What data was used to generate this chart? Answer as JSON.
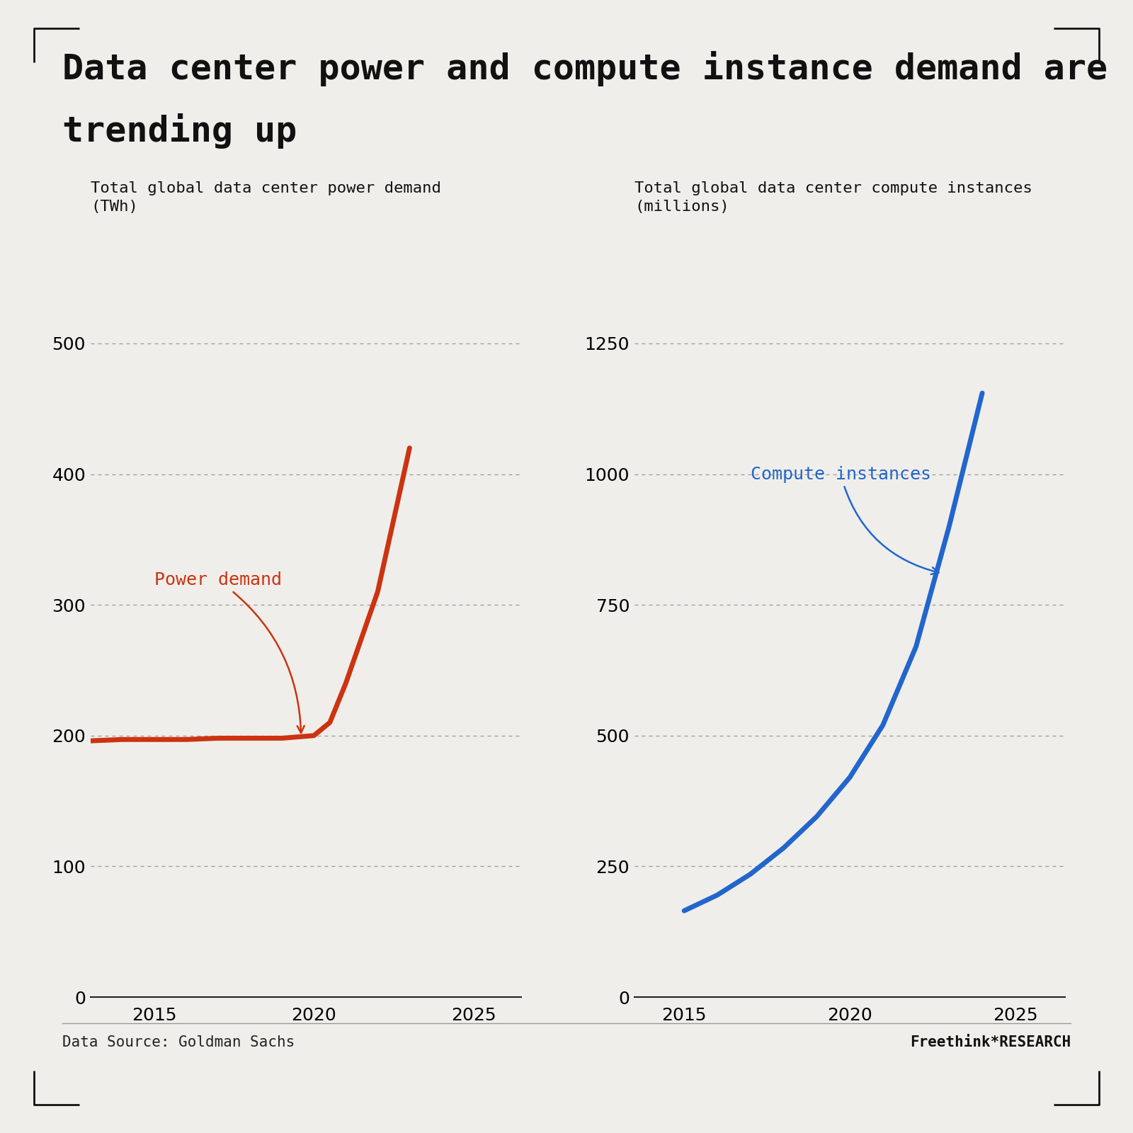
{
  "title_line1": "Data center power and compute instance demand are",
  "title_line2": "trending up",
  "left_subtitle": "Total global data center power demand\n(TWh)",
  "right_subtitle": "Total global data center compute instances\n(millions)",
  "source": "Data Source: Goldman Sachs",
  "branding_regular": "Freethink",
  "branding_star": "*",
  "branding_bold": "RESEARCH",
  "bg_color": "#f0eeeb",
  "left_line_color": "#cc3311",
  "right_line_color": "#2266cc",
  "power_years": [
    2013,
    2014,
    2015,
    2016,
    2017,
    2018,
    2019,
    2019.5,
    2020,
    2020.5,
    2021,
    2022,
    2023
  ],
  "power_values": [
    196,
    197,
    197,
    197,
    198,
    198,
    198,
    199,
    200,
    210,
    240,
    310,
    420
  ],
  "compute_years": [
    2015,
    2016,
    2017,
    2018,
    2019,
    2020,
    2021,
    2022,
    2023,
    2024
  ],
  "compute_values": [
    165,
    195,
    235,
    285,
    345,
    420,
    520,
    670,
    900,
    1155
  ],
  "left_ylim": [
    0,
    520
  ],
  "right_ylim": [
    0,
    1300
  ],
  "left_yticks": [
    0,
    100,
    200,
    300,
    400,
    500
  ],
  "right_yticks": [
    0,
    250,
    500,
    750,
    1000,
    1250
  ],
  "left_xlim": [
    2013.0,
    2026.5
  ],
  "right_xlim": [
    2013.5,
    2026.5
  ],
  "xticks": [
    2015,
    2020,
    2025
  ],
  "power_annotation": "Power demand",
  "compute_annotation": "Compute instances",
  "power_ann_color": "#cc3311",
  "compute_ann_color": "#2266cc",
  "title_fontsize": 36,
  "subtitle_fontsize": 16,
  "tick_fontsize": 18,
  "annotation_fontsize": 18,
  "source_fontsize": 15,
  "branding_fontsize": 15,
  "line_width": 5.0
}
